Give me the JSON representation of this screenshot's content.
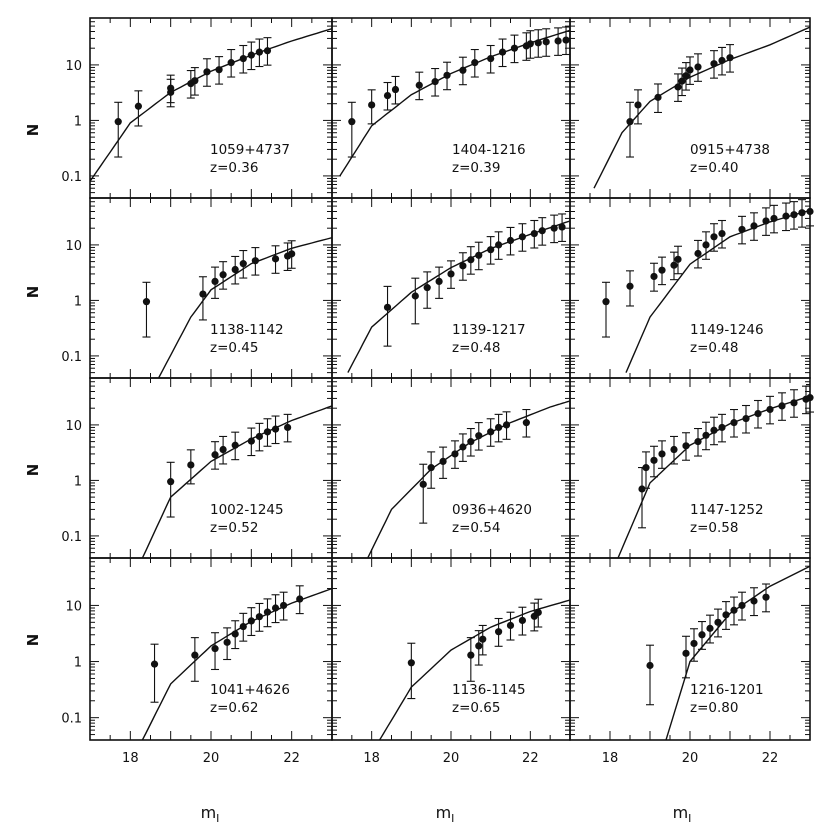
{
  "figure": {
    "ylabel": "N",
    "xlabel_main": "m",
    "xlabel_sub": "I",
    "xlim": [
      17,
      23
    ],
    "ylim": [
      0.04,
      70
    ],
    "yscale": "log",
    "x_ticks": [
      18,
      20,
      22
    ],
    "x_tick_labels": [
      "18",
      "20",
      "22"
    ],
    "y_ticks": [
      0.1,
      1,
      10
    ],
    "y_tick_labels": [
      "0.1",
      "1",
      "10"
    ]
  },
  "chart_data": [
    {
      "type": "scatter",
      "name": "1059+4737",
      "z_label": "z=0.36",
      "points": [
        [
          17.7,
          0.95
        ],
        [
          18.2,
          1.8
        ],
        [
          19.0,
          3.2
        ],
        [
          19.0,
          3.8
        ],
        [
          19.5,
          4.6
        ],
        [
          19.6,
          5.2
        ],
        [
          19.9,
          7.5
        ],
        [
          20.2,
          8.2
        ],
        [
          20.5,
          11
        ],
        [
          20.8,
          13
        ],
        [
          21.0,
          15
        ],
        [
          21.2,
          17
        ],
        [
          21.4,
          18
        ]
      ],
      "curve": [
        [
          17.0,
          0.08
        ],
        [
          18.0,
          0.9
        ],
        [
          19.0,
          3.2
        ],
        [
          20.0,
          7.7
        ],
        [
          21.0,
          15
        ],
        [
          22.0,
          27
        ],
        [
          23.0,
          45
        ]
      ]
    },
    {
      "type": "scatter",
      "name": "1404-1216",
      "z_label": "z=0.39",
      "points": [
        [
          17.5,
          0.95
        ],
        [
          18.0,
          1.9
        ],
        [
          18.4,
          2.8
        ],
        [
          18.6,
          3.6
        ],
        [
          19.2,
          4.3
        ],
        [
          19.6,
          5.0
        ],
        [
          19.9,
          6.5
        ],
        [
          20.3,
          8.0
        ],
        [
          20.6,
          11
        ],
        [
          21.0,
          13
        ],
        [
          21.3,
          17
        ],
        [
          21.6,
          20
        ],
        [
          21.9,
          22
        ],
        [
          22.0,
          24
        ],
        [
          22.2,
          25
        ],
        [
          22.4,
          26
        ],
        [
          22.7,
          27
        ],
        [
          22.9,
          28
        ]
      ],
      "curve": [
        [
          17.2,
          0.1
        ],
        [
          18.0,
          0.8
        ],
        [
          19.0,
          2.9
        ],
        [
          20.0,
          7.0
        ],
        [
          21.0,
          14
        ],
        [
          22.0,
          25
        ],
        [
          23.0,
          42
        ]
      ]
    },
    {
      "type": "scatter",
      "name": "0915+4738",
      "z_label": "z=0.40",
      "points": [
        [
          18.5,
          0.95
        ],
        [
          18.7,
          1.9
        ],
        [
          19.2,
          2.6
        ],
        [
          19.7,
          4.0
        ],
        [
          19.8,
          5.1
        ],
        [
          19.9,
          6.4
        ],
        [
          20.0,
          8.1
        ],
        [
          20.2,
          9.2
        ],
        [
          20.6,
          10.5
        ],
        [
          20.8,
          12
        ],
        [
          21.0,
          13.5
        ]
      ],
      "curve": [
        [
          17.6,
          0.06
        ],
        [
          18.3,
          0.6
        ],
        [
          19.0,
          2.2
        ],
        [
          20.0,
          6.0
        ],
        [
          21.0,
          12.5
        ],
        [
          22.0,
          23
        ],
        [
          23.0,
          48
        ]
      ]
    },
    {
      "type": "scatter",
      "name": "1138-1142",
      "z_label": "z=0.45",
      "points": [
        [
          18.4,
          0.95
        ],
        [
          19.8,
          1.3
        ],
        [
          20.1,
          2.2
        ],
        [
          20.3,
          2.9
        ],
        [
          20.6,
          3.6
        ],
        [
          20.8,
          4.6
        ],
        [
          21.1,
          5.2
        ],
        [
          21.6,
          5.6
        ],
        [
          21.9,
          6.3
        ],
        [
          22.0,
          6.9
        ]
      ],
      "curve": [
        [
          18.7,
          0.04
        ],
        [
          19.5,
          0.5
        ],
        [
          20.0,
          1.55
        ],
        [
          21.0,
          4.6
        ],
        [
          22.0,
          8.7
        ],
        [
          23.0,
          13.5
        ]
      ]
    },
    {
      "type": "scatter",
      "name": "1139-1217",
      "z_label": "z=0.48",
      "points": [
        [
          18.4,
          0.75
        ],
        [
          19.1,
          1.2
        ],
        [
          19.4,
          1.7
        ],
        [
          19.7,
          2.2
        ],
        [
          20.0,
          3.0
        ],
        [
          20.3,
          4.2
        ],
        [
          20.5,
          5.4
        ],
        [
          20.7,
          6.5
        ],
        [
          21.0,
          8.2
        ],
        [
          21.2,
          10
        ],
        [
          21.5,
          12
        ],
        [
          21.8,
          14
        ],
        [
          22.1,
          16
        ],
        [
          22.3,
          18
        ],
        [
          22.6,
          20
        ],
        [
          22.8,
          21
        ]
      ],
      "curve": [
        [
          17.4,
          0.05
        ],
        [
          18.0,
          0.33
        ],
        [
          19.0,
          1.4
        ],
        [
          20.0,
          3.9
        ],
        [
          21.0,
          8.6
        ],
        [
          22.0,
          15.5
        ],
        [
          23.0,
          27
        ]
      ]
    },
    {
      "type": "scatter",
      "name": "1149-1246",
      "z_label": "z=0.48",
      "points": [
        [
          17.9,
          0.95
        ],
        [
          18.5,
          1.8
        ],
        [
          19.1,
          2.7
        ],
        [
          19.3,
          3.5
        ],
        [
          19.6,
          4.3
        ],
        [
          19.7,
          5.5
        ],
        [
          20.2,
          7.0
        ],
        [
          20.4,
          10
        ],
        [
          20.6,
          14
        ],
        [
          20.8,
          16
        ],
        [
          21.3,
          19
        ],
        [
          21.6,
          22
        ],
        [
          21.9,
          27
        ],
        [
          22.1,
          30
        ],
        [
          22.4,
          33
        ],
        [
          22.6,
          35
        ],
        [
          22.8,
          38
        ],
        [
          23.0,
          40
        ]
      ],
      "curve": [
        [
          18.4,
          0.05
        ],
        [
          19.0,
          0.5
        ],
        [
          20.0,
          4.5
        ],
        [
          21.0,
          14
        ],
        [
          22.0,
          26
        ],
        [
          23.0,
          42
        ]
      ]
    },
    {
      "type": "scatter",
      "name": "1002-1245",
      "z_label": "z=0.52",
      "points": [
        [
          19.0,
          0.95
        ],
        [
          19.5,
          1.9
        ],
        [
          20.1,
          2.9
        ],
        [
          20.3,
          3.6
        ],
        [
          20.6,
          4.3
        ],
        [
          21.0,
          5.1
        ],
        [
          21.2,
          6.2
        ],
        [
          21.4,
          7.5
        ],
        [
          21.6,
          8.4
        ],
        [
          21.9,
          9.0
        ]
      ],
      "curve": [
        [
          18.3,
          0.04
        ],
        [
          19.0,
          0.5
        ],
        [
          20.0,
          2.2
        ],
        [
          21.0,
          5.6
        ],
        [
          22.0,
          12
        ],
        [
          23.0,
          22
        ]
      ]
    },
    {
      "type": "scatter",
      "name": "0936+4620",
      "z_label": "z=0.54",
      "points": [
        [
          19.3,
          0.85
        ],
        [
          19.5,
          1.7
        ],
        [
          19.8,
          2.2
        ],
        [
          20.1,
          3.0
        ],
        [
          20.3,
          4.0
        ],
        [
          20.5,
          5.0
        ],
        [
          20.7,
          6.4
        ],
        [
          21.0,
          7.5
        ],
        [
          21.2,
          9.0
        ],
        [
          21.4,
          10
        ],
        [
          21.9,
          11
        ]
      ],
      "curve": [
        [
          17.9,
          0.04
        ],
        [
          18.5,
          0.3
        ],
        [
          19.5,
          1.6
        ],
        [
          20.5,
          4.9
        ],
        [
          21.5,
          11
        ],
        [
          22.5,
          21
        ],
        [
          23.0,
          27
        ]
      ]
    },
    {
      "type": "scatter",
      "name": "1147-1252",
      "z_label": "z=0.58",
      "points": [
        [
          18.8,
          0.7
        ],
        [
          18.9,
          1.7
        ],
        [
          19.1,
          2.3
        ],
        [
          19.3,
          3.0
        ],
        [
          19.6,
          3.6
        ],
        [
          19.9,
          4.2
        ],
        [
          20.2,
          5.0
        ],
        [
          20.4,
          6.5
        ],
        [
          20.6,
          8.0
        ],
        [
          20.8,
          9.0
        ],
        [
          21.1,
          11
        ],
        [
          21.4,
          13
        ],
        [
          21.7,
          16
        ],
        [
          22.0,
          19
        ],
        [
          22.3,
          22
        ],
        [
          22.6,
          25
        ],
        [
          22.9,
          29
        ],
        [
          23.0,
          31
        ]
      ],
      "curve": [
        [
          18.2,
          0.04
        ],
        [
          19.0,
          0.9
        ],
        [
          20.0,
          4.3
        ],
        [
          21.0,
          10.5
        ],
        [
          22.0,
          19.5
        ],
        [
          23.0,
          33
        ]
      ]
    },
    {
      "type": "scatter",
      "name": "1041+4626",
      "z_label": "z=0.62",
      "points": [
        [
          18.6,
          0.9
        ],
        [
          19.6,
          1.3
        ],
        [
          20.1,
          1.7
        ],
        [
          20.4,
          2.2
        ],
        [
          20.6,
          3.1
        ],
        [
          20.8,
          4.2
        ],
        [
          21.0,
          5.3
        ],
        [
          21.2,
          6.3
        ],
        [
          21.4,
          7.6
        ],
        [
          21.6,
          9.0
        ],
        [
          21.8,
          10
        ],
        [
          22.2,
          13
        ]
      ],
      "curve": [
        [
          18.3,
          0.04
        ],
        [
          19.0,
          0.4
        ],
        [
          20.0,
          1.9
        ],
        [
          21.0,
          5.2
        ],
        [
          22.0,
          11
        ],
        [
          23.0,
          20
        ]
      ]
    },
    {
      "type": "scatter",
      "name": "1136-1145",
      "z_label": "z=0.65",
      "points": [
        [
          19.0,
          0.95
        ],
        [
          20.5,
          1.3
        ],
        [
          20.7,
          1.9
        ],
        [
          20.8,
          2.5
        ],
        [
          21.2,
          3.4
        ],
        [
          21.5,
          4.4
        ],
        [
          21.8,
          5.4
        ],
        [
          22.1,
          6.4
        ],
        [
          22.2,
          7.5
        ]
      ],
      "curve": [
        [
          18.2,
          0.04
        ],
        [
          19.0,
          0.35
        ],
        [
          20.0,
          1.6
        ],
        [
          21.0,
          4.1
        ],
        [
          22.0,
          7.8
        ],
        [
          23.0,
          12.5
        ]
      ]
    },
    {
      "type": "scatter",
      "name": "1216-1201",
      "z_label": "z=0.80",
      "points": [
        [
          19.0,
          0.85
        ],
        [
          19.9,
          1.4
        ],
        [
          20.1,
          2.1
        ],
        [
          20.3,
          3.0
        ],
        [
          20.5,
          3.9
        ],
        [
          20.7,
          5.0
        ],
        [
          20.9,
          6.8
        ],
        [
          21.1,
          8.2
        ],
        [
          21.3,
          10
        ],
        [
          21.6,
          12
        ],
        [
          21.9,
          14
        ]
      ],
      "curve": [
        [
          19.4,
          0.04
        ],
        [
          20.0,
          1.0
        ],
        [
          21.0,
          7.2
        ],
        [
          22.0,
          22
        ],
        [
          23.0,
          50
        ]
      ]
    }
  ]
}
